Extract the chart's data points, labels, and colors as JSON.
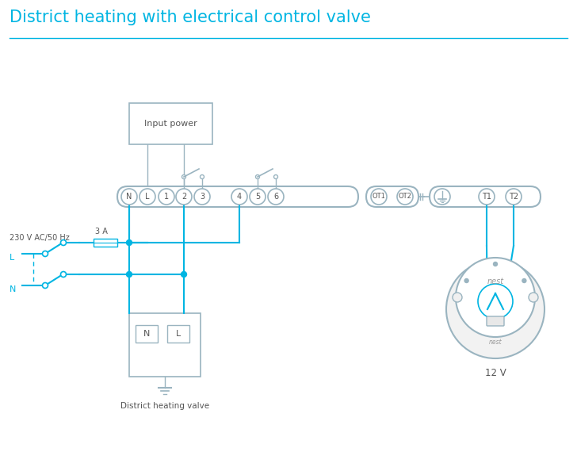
{
  "title": "District heating with electrical control valve",
  "title_color": "#00b5e2",
  "title_fontsize": 15,
  "line_color": "#00b5e2",
  "component_color": "#9ab4c0",
  "dark": "#555555",
  "mid_gray": "#999999",
  "background": "#ffffff",
  "bottom_labels": [
    "District heating valve",
    "12 V"
  ],
  "input_power_label": "Input power"
}
